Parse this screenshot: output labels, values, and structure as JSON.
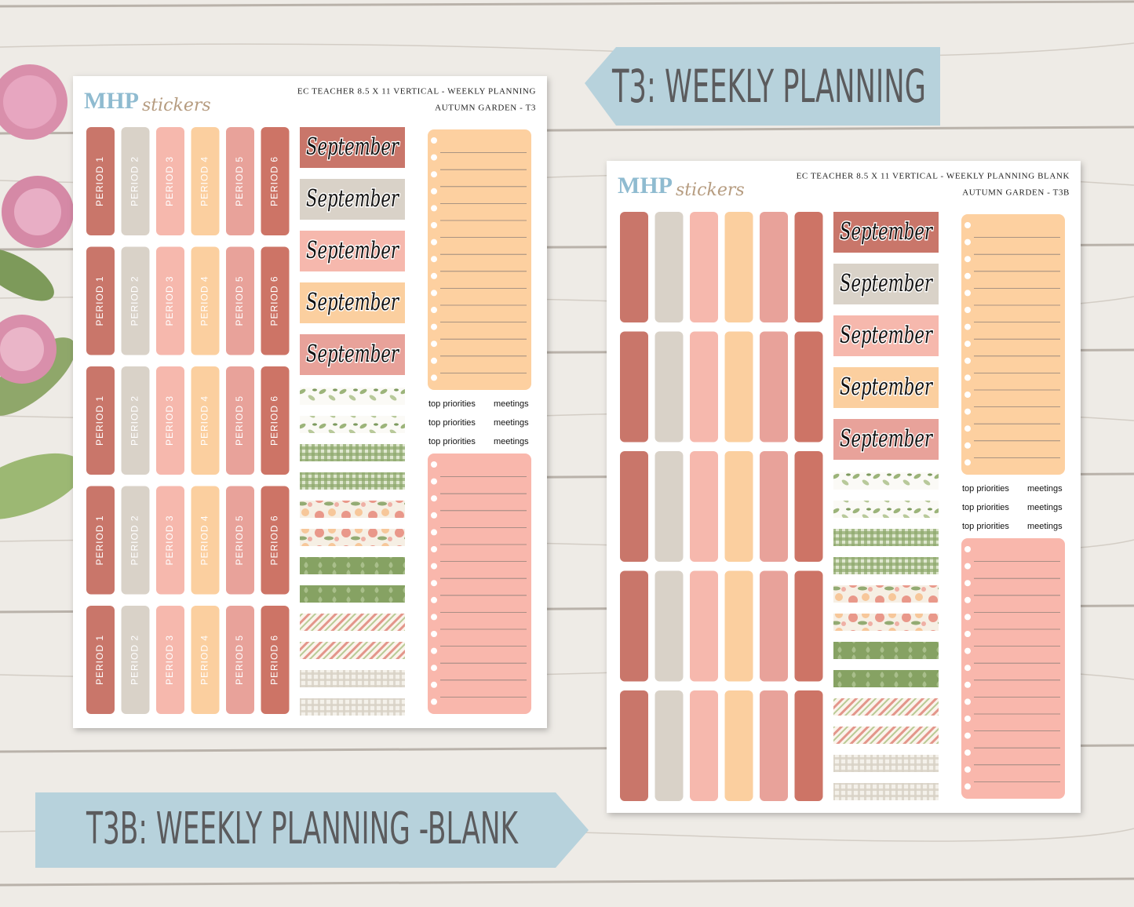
{
  "banners": {
    "top": "T3: WEEKLY PLANNING",
    "bottom": "T3B: WEEKLY PLANNING -BLANK"
  },
  "sheets": [
    {
      "brand": {
        "main": "MHP",
        "sub": "stickers"
      },
      "title": "EC TEACHER 8.5 X 11 VERTICAL - WEEKLY PLANNING",
      "subtitle": "AUTUMN GARDEN - T3",
      "period_rows": [
        [
          "PERIOD 1",
          "PERIOD 2",
          "PERIOD 3",
          "PERIOD 4",
          "PERIOD 5",
          "PERIOD 6"
        ],
        [
          "PERIOD 1",
          "PERIOD 2",
          "PERIOD 3",
          "PERIOD 4",
          "PERIOD 5",
          "PERIOD 6"
        ],
        [
          "PERIOD 1",
          "PERIOD 2",
          "PERIOD 3",
          "PERIOD 4",
          "PERIOD 5",
          "PERIOD 6"
        ],
        [
          "PERIOD 1",
          "PERIOD 2",
          "PERIOD 3",
          "PERIOD 4",
          "PERIOD 5",
          "PERIOD 6"
        ],
        [
          "PERIOD 1",
          "PERIOD 2",
          "PERIOD 3",
          "PERIOD 4",
          "PERIOD 5",
          "PERIOD 6"
        ]
      ],
      "months": [
        "September",
        "September",
        "September",
        "September",
        "September"
      ],
      "labels": [
        [
          "top priorities",
          "meetings"
        ],
        [
          "top priorities",
          "meetings"
        ],
        [
          "top priorities",
          "meetings"
        ]
      ]
    },
    {
      "brand": {
        "main": "MHP",
        "sub": "stickers"
      },
      "title": "EC TEACHER 8.5 X 11 VERTICAL - WEEKLY PLANNING BLANK",
      "subtitle": "AUTUMN GARDEN - T3B",
      "months": [
        "September",
        "September",
        "September",
        "September",
        "September"
      ],
      "labels": [
        [
          "top priorities",
          "meetings"
        ],
        [
          "top priorities",
          "meetings"
        ],
        [
          "top priorities",
          "meetings"
        ]
      ]
    }
  ]
}
